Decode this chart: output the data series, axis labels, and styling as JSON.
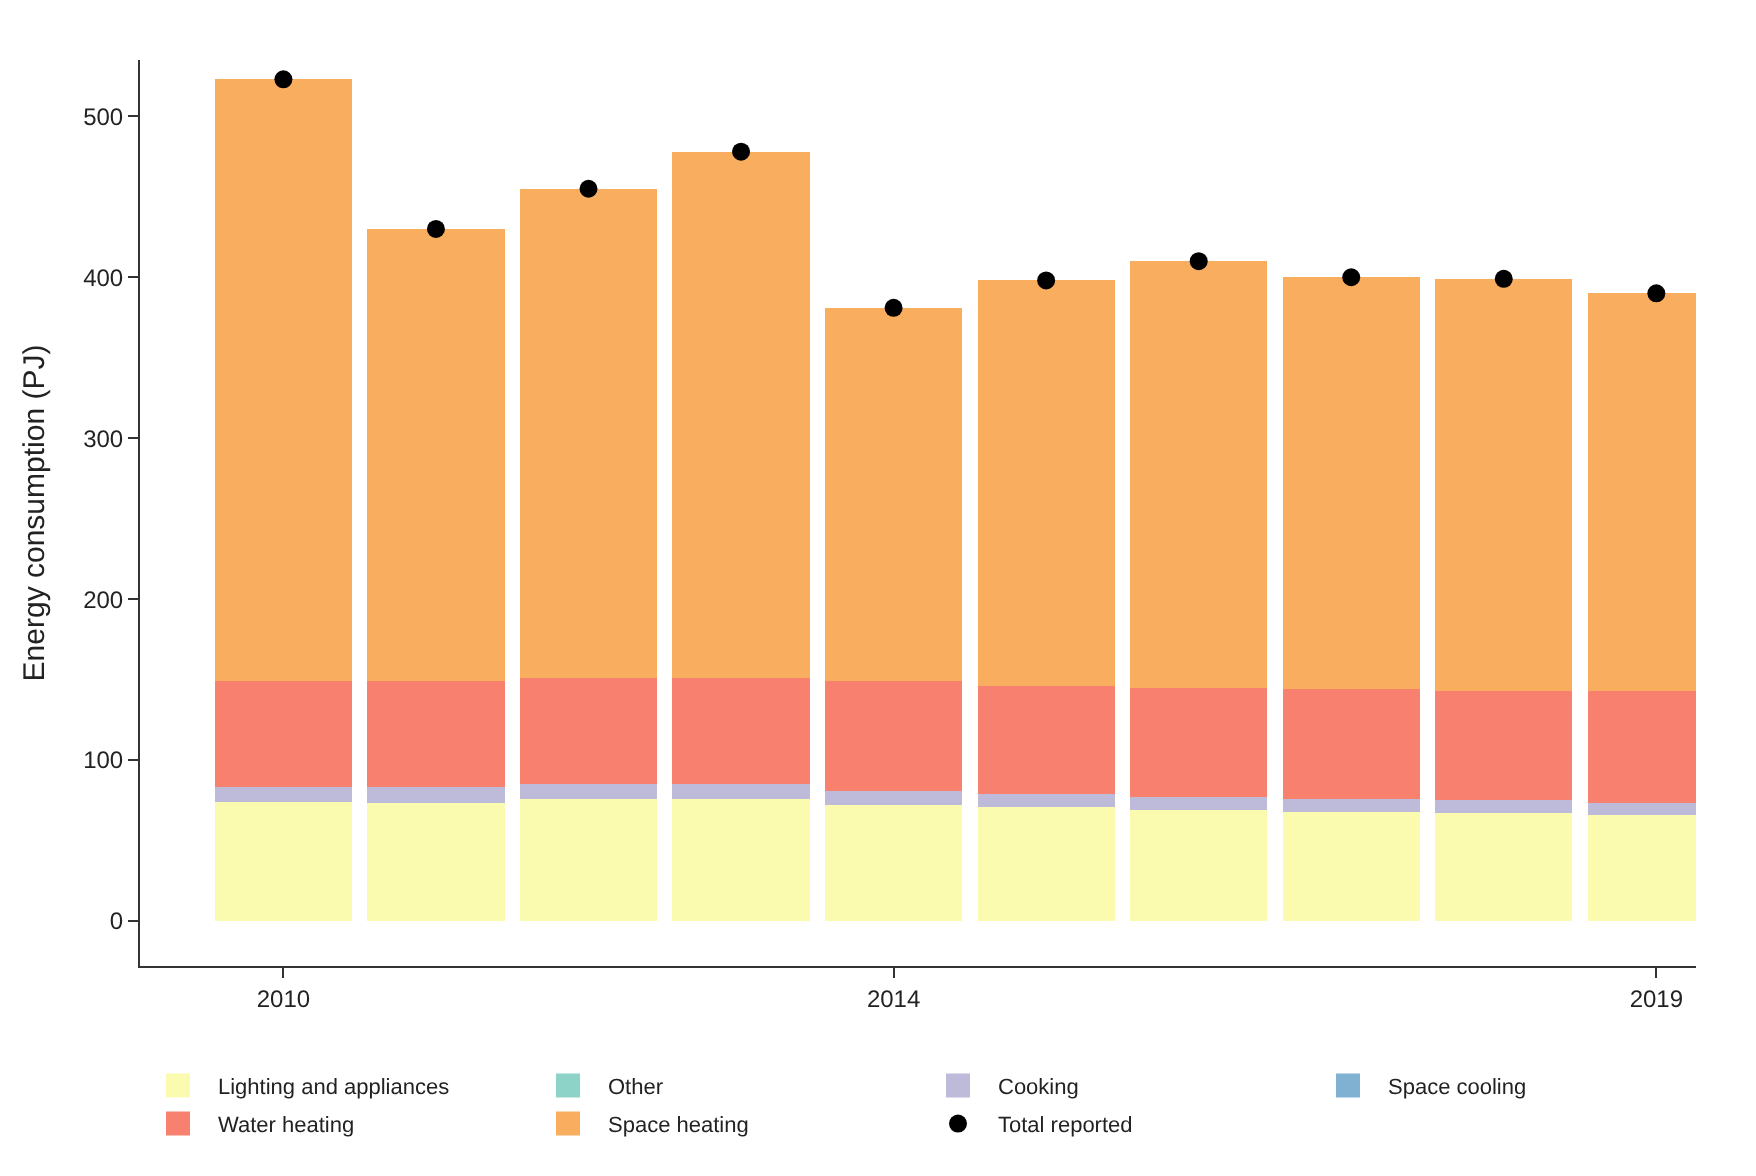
{
  "chart_data": {
    "type": "bar",
    "stacked": true,
    "ylabel": "Energy consumption (PJ)",
    "x": [
      2010,
      2011,
      2012,
      2013,
      2014,
      2015,
      2016,
      2017,
      2018,
      2019
    ],
    "xlim": [
      2009.06,
      2019.26
    ],
    "xticks": [
      2010,
      2014,
      2019
    ],
    "ylim": [
      -28,
      535
    ],
    "yticks": [
      0,
      100,
      200,
      300,
      400,
      500
    ],
    "legend": "bottom",
    "series": [
      {
        "name": "Lighting and appliances",
        "color": "#fbfbaf",
        "values": [
          74,
          73,
          76,
          76,
          72,
          71,
          69,
          68,
          67,
          66
        ]
      },
      {
        "name": "Other",
        "color": "#8dd3c7",
        "values": [
          0,
          0,
          0,
          0,
          0,
          0,
          0,
          0,
          0,
          0
        ]
      },
      {
        "name": "Cooking",
        "color": "#bebada",
        "values": [
          9,
          10,
          9,
          9,
          9,
          8,
          8,
          8,
          8,
          7
        ]
      },
      {
        "name": "Space cooling",
        "color": "#80b1d3",
        "values": [
          0,
          0,
          0,
          0,
          0,
          0,
          0,
          0,
          0,
          0
        ]
      },
      {
        "name": "Water heating",
        "color": "#f8806f",
        "values": [
          66,
          66,
          66,
          66,
          68,
          67,
          68,
          68,
          68,
          70
        ]
      },
      {
        "name": "Space heating",
        "color": "#f9ad5f",
        "values": [
          374,
          281,
          304,
          327,
          232,
          252,
          265,
          256,
          256,
          247
        ]
      },
      {
        "name": "Total reported",
        "type": "scatter",
        "marker": "circle",
        "color": "#000000",
        "values": [
          523,
          430,
          455,
          478,
          381,
          398,
          410,
          400,
          399,
          390
        ]
      }
    ]
  }
}
